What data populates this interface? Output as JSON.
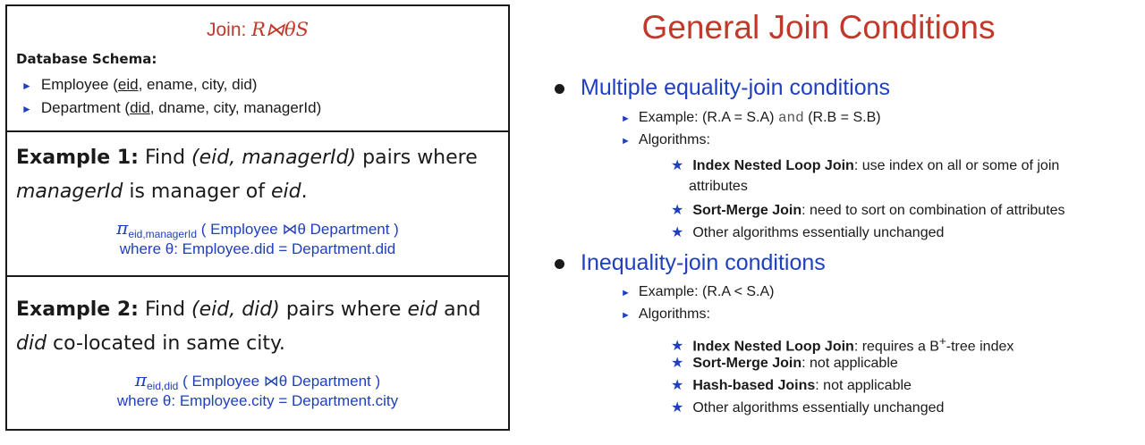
{
  "left": {
    "join_title_prefix": "Join: ",
    "join_title_expr": "R⋈θS",
    "schema_heading": "Database Schema:",
    "schema": [
      {
        "rel": "Employee (",
        "key": "eid",
        "rest": ", ename, city, did)"
      },
      {
        "rel": "Department (",
        "key": "did",
        "rest": ", dname, city, managerId)"
      }
    ],
    "example1": {
      "label": "Example 1:",
      "text_a": " Find ",
      "pair": "(eid, managerId)",
      "text_b": " pairs where ",
      "attr1": "managerId",
      "text_c": " is manager of ",
      "attr2": "eid",
      "text_d": ".",
      "pi": "π",
      "pi_sub": "eid,managerId",
      "expr": " ( Employee ⋈θ Department )",
      "where": "where θ: Employee.did = Department.did"
    },
    "example2": {
      "label": "Example 2:",
      "text_a": " Find ",
      "pair": "(eid, did)",
      "text_b": " pairs where ",
      "attr1": "eid",
      "text_c": " and ",
      "attr2": "did",
      "text_d": " co-located in same city.",
      "pi": "π",
      "pi_sub": "eid,did",
      "expr": " ( Employee ⋈θ Department )",
      "where": "where θ: Employee.city = Department.city"
    }
  },
  "right": {
    "title": "General Join Conditions",
    "section1": {
      "heading": "Multiple equality-join conditions",
      "example_prefix": "Example: (R.A = S.A) ",
      "example_and": "and",
      "example_suffix": " (R.B = S.B)",
      "algorithms_label": "Algorithms:",
      "items": [
        {
          "name": "Index Nested Loop Join",
          "desc": ": use index on all or some of join",
          "desc2": "attributes"
        },
        {
          "name": "Sort-Merge Join",
          "desc": ": need to sort on combination of attributes"
        },
        {
          "name": "",
          "desc": "Other algorithms essentially unchanged"
        }
      ]
    },
    "section2": {
      "heading": "Inequality-join conditions",
      "example": "Example: (R.A < S.A)",
      "algorithms_label": "Algorithms:",
      "items": [
        {
          "name": "Index Nested Loop Join",
          "desc": ": requires a B",
          "sup": "+",
          "desc_end": "-tree index"
        },
        {
          "name": "Sort-Merge Join",
          "desc": ": not applicable"
        },
        {
          "name": "Hash-based Joins",
          "desc": ": not applicable"
        },
        {
          "name": "",
          "desc": "Other algorithms essentially unchanged"
        }
      ]
    }
  }
}
